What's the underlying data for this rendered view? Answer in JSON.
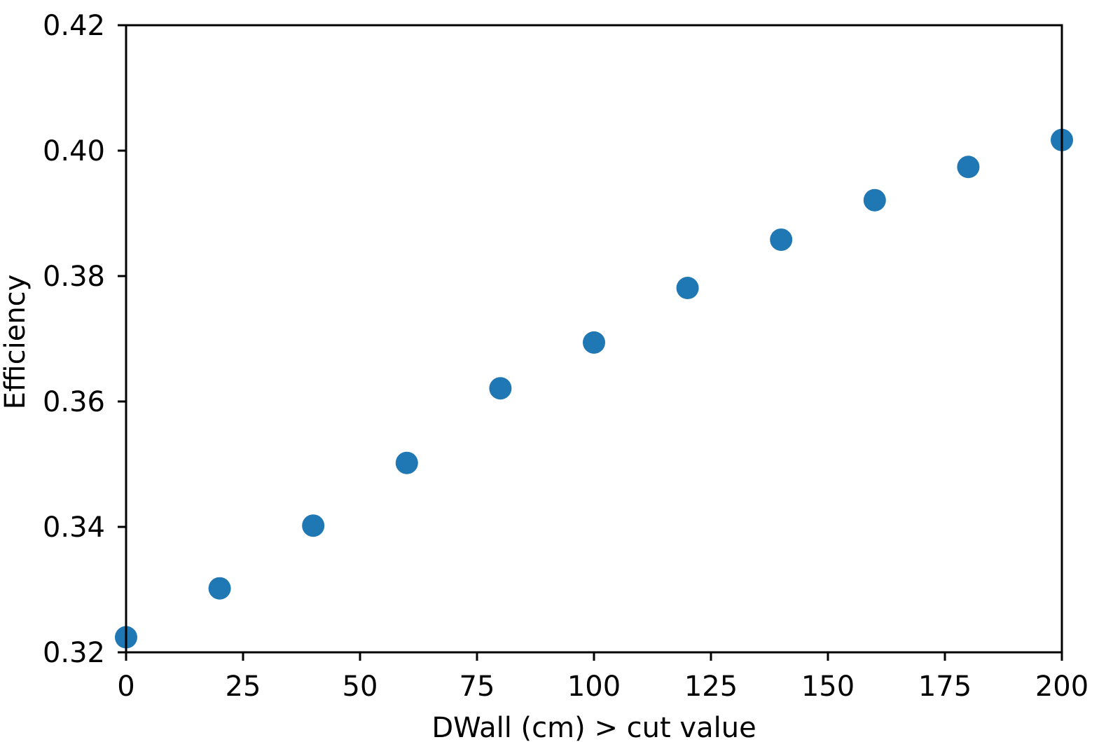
{
  "chart_data": {
    "type": "scatter",
    "title": "",
    "xlabel": "DWall (cm) > cut value",
    "ylabel": "Efficiency",
    "xlim": [
      0,
      200
    ],
    "ylim": [
      0.32,
      0.42
    ],
    "xticks": [
      0,
      25,
      50,
      75,
      100,
      125,
      150,
      175,
      200
    ],
    "xtick_labels": [
      "0",
      "25",
      "50",
      "75",
      "100",
      "125",
      "150",
      "175",
      "200"
    ],
    "yticks": [
      0.32,
      0.34,
      0.36,
      0.38,
      0.4,
      0.42
    ],
    "ytick_labels": [
      "0.32",
      "0.34",
      "0.36",
      "0.38",
      "0.40",
      "0.42"
    ],
    "grid": false,
    "marker_color": "#1f77b4",
    "series": [
      {
        "x": [
          0,
          20,
          40,
          60,
          80,
          100,
          120,
          140,
          160,
          180,
          200
        ],
        "y": [
          0.3224,
          0.3302,
          0.3402,
          0.3502,
          0.3621,
          0.3694,
          0.3781,
          0.3858,
          0.3921,
          0.3974,
          0.4017
        ]
      }
    ]
  }
}
